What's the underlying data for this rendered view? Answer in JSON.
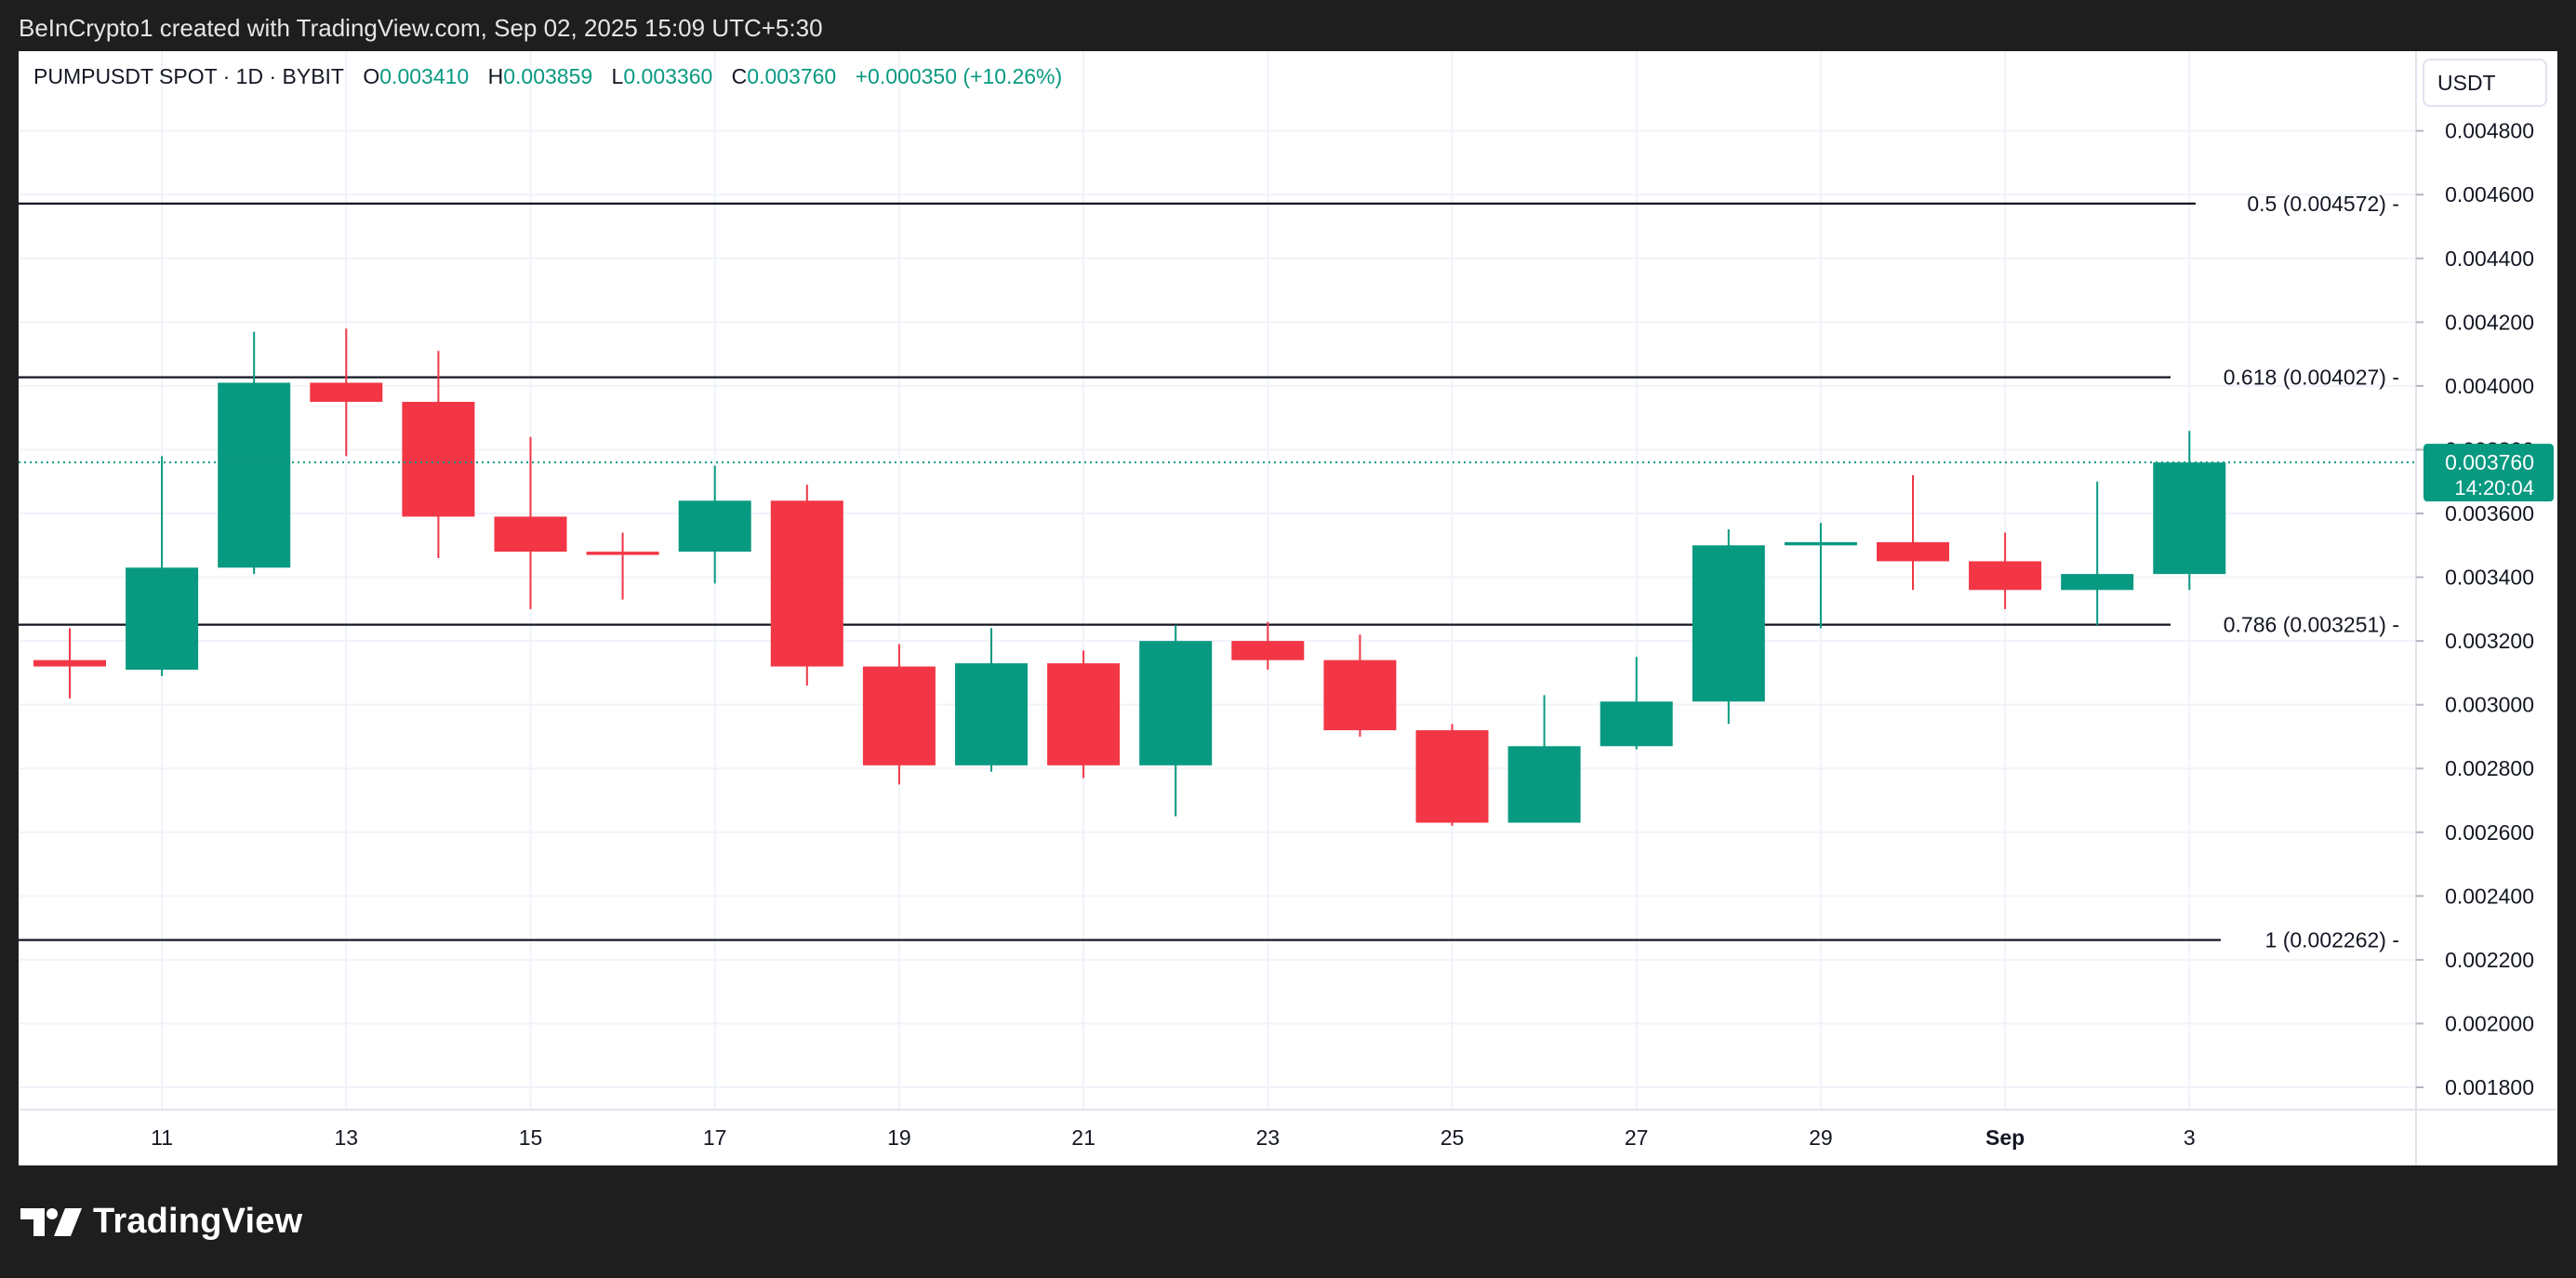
{
  "credit": "BeInCrypto1 created with TradingView.com, Sep 02, 2025 15:09 UTC+5:30",
  "legend": {
    "symbol": "PUMPUSDT SPOT · 1D · BYBIT",
    "open_label": "O",
    "open": "0.003410",
    "high_label": "H",
    "high": "0.003859",
    "low_label": "L",
    "low": "0.003360",
    "close_label": "C",
    "close": "0.003760",
    "change": "+0.000350 (+10.26%)"
  },
  "currency": "USDT",
  "brand": "TradingView",
  "colors": {
    "up": "#089981",
    "down": "#f23645",
    "grid": "#f0f3fa",
    "fib_line": "#131722",
    "axis_text": "#131722",
    "price_line": "#089981"
  },
  "chart_data": {
    "type": "candlestick",
    "x_labels": [
      "11",
      "13",
      "15",
      "17",
      "19",
      "21",
      "23",
      "25",
      "27",
      "29",
      "Sep",
      "3"
    ],
    "y_ticks": [
      "0.004800",
      "0.004600",
      "0.004400",
      "0.004200",
      "0.004000",
      "0.003800",
      "0.003600",
      "0.003400",
      "0.003200",
      "0.003000",
      "0.002800",
      "0.002600",
      "0.002400",
      "0.002200",
      "0.002000",
      "0.001800"
    ],
    "y_range": [
      0.00173,
      0.00505
    ],
    "candles": [
      {
        "date": "Aug 10",
        "o": 0.00314,
        "h": 0.00324,
        "l": 0.00302,
        "c": 0.00312
      },
      {
        "date": "Aug 11",
        "o": 0.00311,
        "h": 0.00378,
        "l": 0.00309,
        "c": 0.00343
      },
      {
        "date": "Aug 12",
        "o": 0.00343,
        "h": 0.00417,
        "l": 0.00341,
        "c": 0.00401
      },
      {
        "date": "Aug 13",
        "o": 0.00401,
        "h": 0.00418,
        "l": 0.00378,
        "c": 0.00395
      },
      {
        "date": "Aug 14",
        "o": 0.00395,
        "h": 0.00411,
        "l": 0.00346,
        "c": 0.00359
      },
      {
        "date": "Aug 15",
        "o": 0.00359,
        "h": 0.00384,
        "l": 0.0033,
        "c": 0.00348
      },
      {
        "date": "Aug 16",
        "o": 0.00348,
        "h": 0.00354,
        "l": 0.00333,
        "c": 0.00347
      },
      {
        "date": "Aug 17",
        "o": 0.00348,
        "h": 0.00375,
        "l": 0.00338,
        "c": 0.00364
      },
      {
        "date": "Aug 18",
        "o": 0.00364,
        "h": 0.00369,
        "l": 0.00306,
        "c": 0.00312
      },
      {
        "date": "Aug 19",
        "o": 0.00312,
        "h": 0.00319,
        "l": 0.00275,
        "c": 0.00281
      },
      {
        "date": "Aug 20",
        "o": 0.00281,
        "h": 0.00324,
        "l": 0.00279,
        "c": 0.00313
      },
      {
        "date": "Aug 21",
        "o": 0.00313,
        "h": 0.00317,
        "l": 0.00277,
        "c": 0.00281
      },
      {
        "date": "Aug 22",
        "o": 0.00281,
        "h": 0.00325,
        "l": 0.00265,
        "c": 0.0032
      },
      {
        "date": "Aug 23",
        "o": 0.0032,
        "h": 0.00326,
        "l": 0.00311,
        "c": 0.00314
      },
      {
        "date": "Aug 24",
        "o": 0.00314,
        "h": 0.00322,
        "l": 0.0029,
        "c": 0.00292
      },
      {
        "date": "Aug 25",
        "o": 0.00292,
        "h": 0.00294,
        "l": 0.00262,
        "c": 0.00263
      },
      {
        "date": "Aug 26",
        "o": 0.00263,
        "h": 0.00303,
        "l": 0.00263,
        "c": 0.00287
      },
      {
        "date": "Aug 27",
        "o": 0.00287,
        "h": 0.00315,
        "l": 0.00286,
        "c": 0.00301
      },
      {
        "date": "Aug 28",
        "o": 0.00301,
        "h": 0.00355,
        "l": 0.00294,
        "c": 0.0035
      },
      {
        "date": "Aug 29",
        "o": 0.0035,
        "h": 0.00357,
        "l": 0.00324,
        "c": 0.00351
      },
      {
        "date": "Aug 30",
        "o": 0.00351,
        "h": 0.00372,
        "l": 0.00336,
        "c": 0.00345
      },
      {
        "date": "Aug 31",
        "o": 0.00345,
        "h": 0.00354,
        "l": 0.0033,
        "c": 0.00336
      },
      {
        "date": "Sep 01",
        "o": 0.00336,
        "h": 0.0037,
        "l": 0.00325,
        "c": 0.00341
      },
      {
        "date": "Sep 02",
        "o": 0.00341,
        "h": 0.003859,
        "l": 0.00336,
        "c": 0.00376
      }
    ],
    "fib_levels": [
      {
        "label": "0.5 (0.004572)",
        "value": 0.004572
      },
      {
        "label": "0.618 (0.004027)",
        "value": 0.004027
      },
      {
        "label": "0.786 (0.003251)",
        "value": 0.003251
      },
      {
        "label": "1 (0.002262)",
        "value": 0.002262
      }
    ],
    "last_price": {
      "value": 0.00376,
      "price_text": "0.003760",
      "countdown": "14:20:04"
    },
    "grid": true
  }
}
